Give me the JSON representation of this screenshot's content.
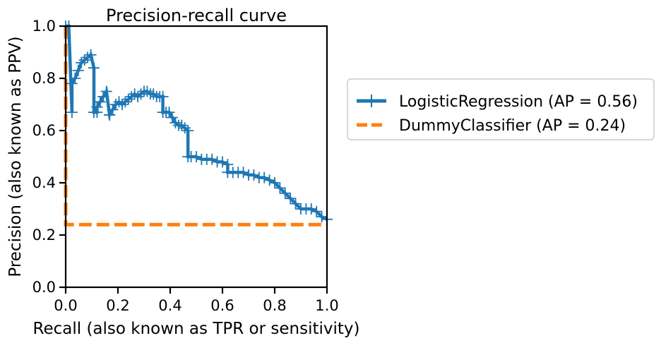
{
  "chart_data": {
    "type": "line",
    "title": "Precision-recall curve",
    "xlabel": "Recall (also known as TPR or sensitivity)",
    "ylabel": "Precision (also known as PPV)",
    "xlim": [
      0,
      1
    ],
    "ylim": [
      0,
      1
    ],
    "xticks": [
      "0.0",
      "0.2",
      "0.4",
      "0.6",
      "0.8",
      "1.0"
    ],
    "yticks": [
      "0.0",
      "0.2",
      "0.4",
      "0.6",
      "0.8",
      "1.0"
    ],
    "grid": false,
    "legend_placement": "outside right",
    "series": [
      {
        "name": "LogisticRegression (AP = 0.56)",
        "color": "#1f77b4",
        "style": "solid-step-with-plus-markers",
        "x": [
          0.0,
          0.012,
          0.024,
          0.024,
          0.036,
          0.048,
          0.06,
          0.072,
          0.084,
          0.096,
          0.108,
          0.108,
          0.12,
          0.12,
          0.132,
          0.144,
          0.156,
          0.168,
          0.168,
          0.18,
          0.192,
          0.204,
          0.216,
          0.228,
          0.24,
          0.252,
          0.264,
          0.276,
          0.288,
          0.3,
          0.312,
          0.324,
          0.336,
          0.348,
          0.36,
          0.372,
          0.372,
          0.384,
          0.396,
          0.408,
          0.42,
          0.432,
          0.444,
          0.456,
          0.468,
          0.468,
          0.48,
          0.5,
          0.52,
          0.54,
          0.56,
          0.58,
          0.6,
          0.62,
          0.62,
          0.64,
          0.66,
          0.68,
          0.7,
          0.72,
          0.74,
          0.76,
          0.78,
          0.8,
          0.82,
          0.84,
          0.86,
          0.88,
          0.9,
          0.92,
          0.94,
          0.96,
          0.98,
          1.0
        ],
        "y": [
          1.0,
          1.0,
          0.67,
          0.78,
          0.8,
          0.83,
          0.86,
          0.87,
          0.88,
          0.89,
          0.84,
          0.67,
          0.67,
          0.69,
          0.71,
          0.73,
          0.75,
          0.66,
          0.66,
          0.68,
          0.7,
          0.71,
          0.7,
          0.71,
          0.72,
          0.73,
          0.74,
          0.73,
          0.74,
          0.75,
          0.75,
          0.74,
          0.74,
          0.73,
          0.73,
          0.73,
          0.67,
          0.67,
          0.67,
          0.65,
          0.63,
          0.62,
          0.62,
          0.61,
          0.6,
          0.5,
          0.5,
          0.5,
          0.49,
          0.49,
          0.49,
          0.48,
          0.48,
          0.47,
          0.44,
          0.44,
          0.44,
          0.44,
          0.43,
          0.43,
          0.42,
          0.42,
          0.41,
          0.4,
          0.38,
          0.36,
          0.34,
          0.32,
          0.3,
          0.3,
          0.3,
          0.29,
          0.27,
          0.26
        ]
      },
      {
        "name": "DummyClassifier (AP = 0.24)",
        "color": "#ff7f0e",
        "style": "dashed",
        "x": [
          0.0,
          0.0,
          1.0
        ],
        "y": [
          1.0,
          0.24,
          0.24
        ]
      }
    ]
  }
}
